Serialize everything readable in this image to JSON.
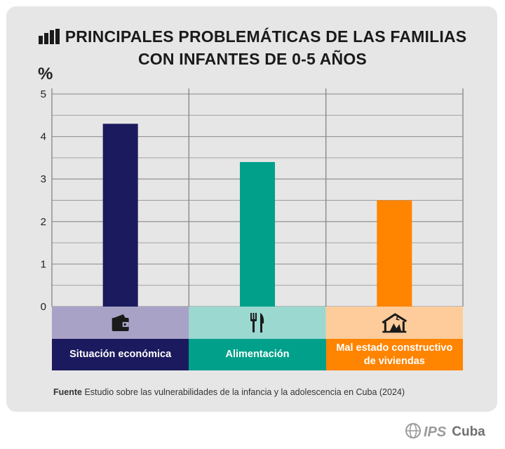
{
  "title": {
    "line1": "PRINCIPALES PROBLEMÁTICAS DE LAS FAMILIAS",
    "line2": "CON INFANTES DE 0-5 AÑOS"
  },
  "chart_data": {
    "type": "bar",
    "title": "PRINCIPALES PROBLEMÁTICAS DE LAS FAMILIAS CON INFANTES DE 0-5 AÑOS",
    "ylabel": "%",
    "xlabel": "",
    "ylim": [
      0,
      5
    ],
    "yticks": [
      0,
      1,
      2,
      3,
      4,
      5
    ],
    "grid": true,
    "categories": [
      "Situación económica",
      "Alimentación",
      "Mal estado constructivo de viviendas"
    ],
    "values": [
      4.3,
      3.4,
      2.5
    ],
    "colors": [
      "#1c1a5e",
      "#00a08a",
      "#ff8400"
    ],
    "icon_colors": [
      "#a8a2c6",
      "#9ad8d0",
      "#fdcc9a"
    ],
    "icons": [
      "wallet-icon",
      "fork-knife-icon",
      "damaged-house-icon"
    ]
  },
  "source": {
    "label": "Fuente",
    "text": "Estudio sobre las vulnerabilidades de la infancia y la adolescencia en Cuba (2024)"
  },
  "brand": {
    "ips": "IPS",
    "cuba": "Cuba"
  }
}
